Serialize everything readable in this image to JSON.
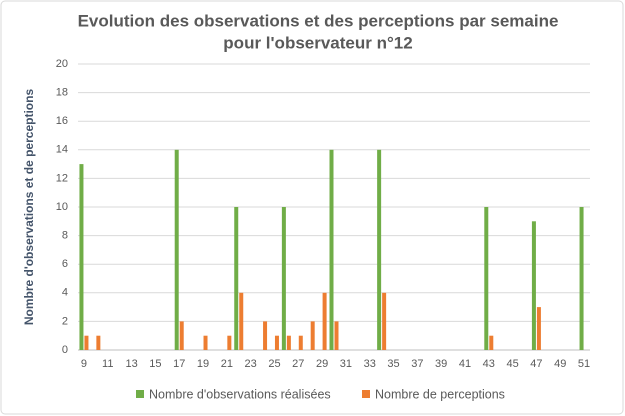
{
  "chart_data": {
    "type": "bar",
    "title": [
      "Evolution des observations et des perceptions par semaine",
      "pour l'observateur n°12"
    ],
    "y_label": "Nombre d'observations et de perceptions",
    "categories": [
      9,
      null,
      11,
      null,
      13,
      null,
      15,
      null,
      17,
      null,
      19,
      null,
      21,
      null,
      23,
      null,
      25,
      null,
      27,
      null,
      29,
      null,
      31,
      null,
      33,
      null,
      35,
      null,
      37,
      null,
      39,
      null,
      41,
      null,
      43,
      null,
      45,
      null,
      47,
      null,
      49,
      null,
      51
    ],
    "series": [
      {
        "name": "Nombre d'observations réalisées",
        "color": "#70ad47",
        "values": [
          13,
          0,
          0,
          0,
          0,
          0,
          0,
          0,
          14,
          0,
          0,
          0,
          0,
          10,
          0,
          0,
          0,
          10,
          0,
          0,
          0,
          14,
          0,
          0,
          0,
          14,
          0,
          0,
          0,
          0,
          0,
          0,
          0,
          0,
          10,
          0,
          0,
          0,
          9,
          0,
          0,
          0,
          10
        ]
      },
      {
        "name": "Nombre de perceptions",
        "color": "#ed7d31",
        "values": [
          1,
          1,
          0,
          0,
          0,
          0,
          0,
          0,
          2,
          0,
          1,
          0,
          1,
          4,
          0,
          2,
          1,
          1,
          1,
          2,
          4,
          2,
          0,
          0,
          0,
          4,
          0,
          0,
          0,
          0,
          0,
          0,
          0,
          0,
          1,
          0,
          0,
          0,
          3,
          0,
          0,
          0,
          0
        ]
      }
    ],
    "ylim": [
      0,
      20
    ],
    "yticks": [
      0,
      2,
      4,
      6,
      8,
      10,
      12,
      14,
      16,
      18,
      20
    ],
    "grid": true,
    "legend": "bottom"
  }
}
